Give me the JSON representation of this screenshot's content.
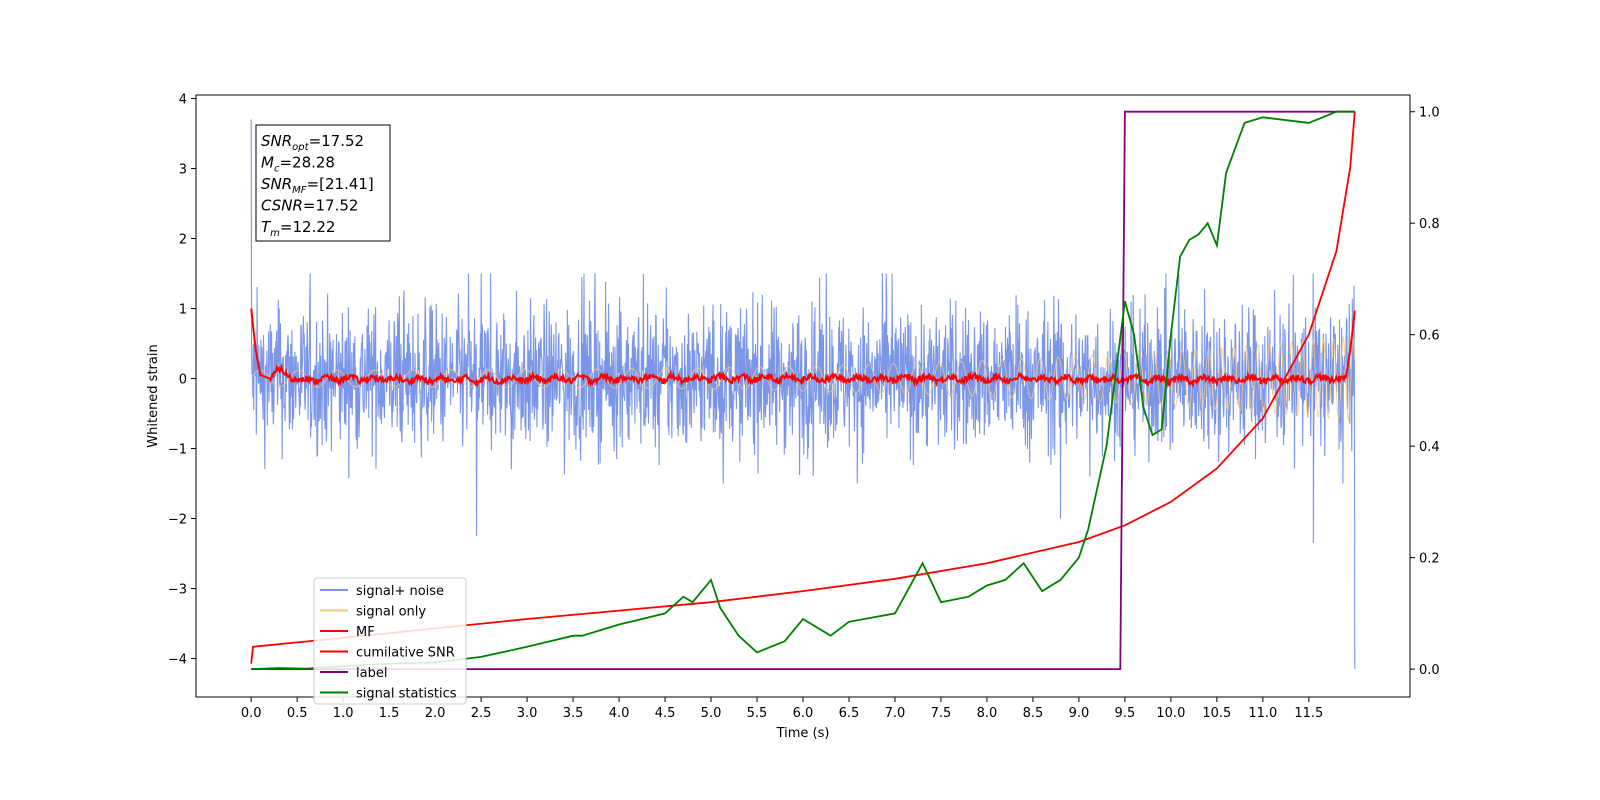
{
  "chart_data": {
    "type": "line",
    "xlabel": "Time (s)",
    "ylabel": "Whitened strain",
    "xlim": [
      -0.6,
      12.6
    ],
    "ylim": [
      -4.55,
      4.05
    ],
    "y2lim": [
      -0.05,
      1.03
    ],
    "x_ticks": [
      0.0,
      0.5,
      1.0,
      1.5,
      2.0,
      2.5,
      3.0,
      3.5,
      4.0,
      4.5,
      5.0,
      5.5,
      6.0,
      6.5,
      7.0,
      7.5,
      8.0,
      8.5,
      9.0,
      9.5,
      10.0,
      10.5,
      11.0,
      11.5
    ],
    "x_tick_labels": [
      "0.0",
      "0.5",
      "1.0",
      "1.5",
      "2.0",
      "2.5",
      "3.0",
      "3.5",
      "4.0",
      "4.5",
      "5.0",
      "5.5",
      "6.0",
      "6.5",
      "7.0",
      "7.5",
      "8.0",
      "8.5",
      "9.0",
      "9.5",
      "10.0",
      "10.5",
      "11.0",
      "11.5"
    ],
    "y_ticks": [
      4,
      3,
      2,
      1,
      0,
      -1,
      -2,
      -3,
      -4
    ],
    "y_tick_labels": [
      "4",
      "3",
      "2",
      "1",
      "0",
      "−1",
      "−2",
      "−3",
      "−4"
    ],
    "y2_ticks": [
      1.0,
      0.8,
      0.6,
      0.4,
      0.2,
      0.0
    ],
    "y2_tick_labels": [
      "1.0",
      "0.8",
      "0.6",
      "0.4",
      "0.2",
      "0.0"
    ],
    "annotation": [
      {
        "base": "SNR",
        "sub": "opt",
        "value": "=17.52"
      },
      {
        "base": "M",
        "sub": "c",
        "value": "=28.28"
      },
      {
        "base": "SNR",
        "sub": "MF",
        "value": "=[21.41]"
      },
      {
        "base": "CSNR",
        "sub": "",
        "value": "=17.52"
      },
      {
        "base": "T",
        "sub": "m",
        "value": "=12.22"
      }
    ],
    "legend_position": "lower-left",
    "series": [
      {
        "name": "signal+ noise",
        "color": "#7b96e8",
        "axis": "left",
        "noise_range": [
          -1.5,
          1.5
        ],
        "peak_values": [
          {
            "x": 0.0,
            "y": 3.7
          },
          {
            "x": 2.45,
            "y": -2.25
          },
          {
            "x": 8.8,
            "y": -2.0
          },
          {
            "x": 11.55,
            "y": -2.35
          },
          {
            "x": 12.0,
            "y": -4.15
          }
        ]
      },
      {
        "name": "signal only",
        "color": "#f5c97a",
        "axis": "left",
        "amplitude_start": 0.12,
        "amplitude_end": 0.6
      },
      {
        "name": "MF",
        "color": "#ff0000",
        "axis": "left",
        "x": [
          0.0,
          0.05,
          0.1,
          0.2,
          0.3,
          0.5,
          1.0,
          2.0,
          4.0,
          6.0,
          8.0,
          10.0,
          11.9,
          11.95,
          12.0
        ],
        "y": [
          1.0,
          0.4,
          0.05,
          0.0,
          0.12,
          -0.02,
          0.0,
          -0.02,
          0.0,
          0.0,
          0.0,
          -0.02,
          0.0,
          0.4,
          0.97
        ]
      },
      {
        "name": "cumilative SNR",
        "color": "#ff0000",
        "axis": "right",
        "x": [
          0.0,
          0.02,
          0.5,
          1.0,
          2.0,
          3.0,
          4.0,
          5.0,
          6.0,
          7.0,
          8.0,
          9.0,
          9.5,
          10.0,
          10.5,
          11.0,
          11.5,
          11.8,
          11.95,
          12.0
        ],
        "y": [
          0.01,
          0.04,
          0.048,
          0.056,
          0.073,
          0.09,
          0.105,
          0.12,
          0.14,
          0.162,
          0.19,
          0.228,
          0.258,
          0.3,
          0.36,
          0.45,
          0.6,
          0.75,
          0.9,
          1.0
        ]
      },
      {
        "name": "label",
        "color": "#800080",
        "axis": "right",
        "x": [
          0.0,
          9.45,
          9.5,
          12.0
        ],
        "y": [
          0.0,
          0.0,
          1.0,
          1.0
        ]
      },
      {
        "name": "signal statistics",
        "color": "#008000",
        "axis": "right",
        "x": [
          0.0,
          0.3,
          0.6,
          1.0,
          1.5,
          2.0,
          2.5,
          3.0,
          3.5,
          3.6,
          4.0,
          4.5,
          4.7,
          4.8,
          5.0,
          5.1,
          5.3,
          5.5,
          5.8,
          6.0,
          6.3,
          6.5,
          7.0,
          7.2,
          7.3,
          7.5,
          7.8,
          8.0,
          8.2,
          8.4,
          8.6,
          8.8,
          9.0,
          9.1,
          9.3,
          9.5,
          9.6,
          9.7,
          9.8,
          9.9,
          10.0,
          10.1,
          10.2,
          10.3,
          10.4,
          10.5,
          10.6,
          10.8,
          11.0,
          11.5,
          11.8,
          12.0
        ],
        "y": [
          0.0,
          0.002,
          0.001,
          0.005,
          0.01,
          0.012,
          0.022,
          0.04,
          0.06,
          0.06,
          0.08,
          0.1,
          0.13,
          0.12,
          0.16,
          0.11,
          0.06,
          0.03,
          0.05,
          0.09,
          0.06,
          0.085,
          0.1,
          0.16,
          0.19,
          0.12,
          0.13,
          0.15,
          0.16,
          0.19,
          0.14,
          0.16,
          0.2,
          0.25,
          0.4,
          0.66,
          0.6,
          0.47,
          0.42,
          0.43,
          0.6,
          0.74,
          0.77,
          0.78,
          0.8,
          0.76,
          0.89,
          0.98,
          0.99,
          0.98,
          1.0,
          1.0
        ]
      }
    ]
  }
}
